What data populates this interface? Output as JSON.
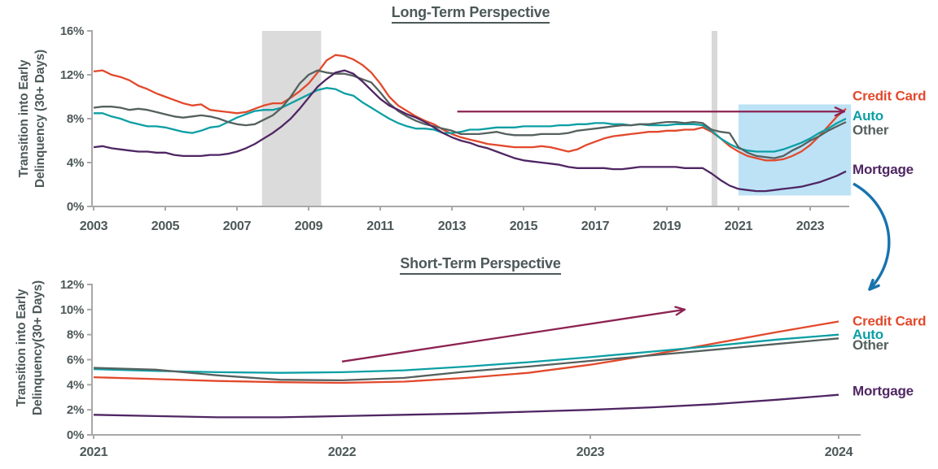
{
  "colors": {
    "credit_card": "#E2492C",
    "auto": "#0B9FA4",
    "other": "#55615F",
    "mortgage": "#4F2663",
    "trend_arrow": "#8C2351",
    "connector_arrow": "#1873AE",
    "highlight_box": "#BDE2F6",
    "recession_band": "#DBDBDB",
    "axis": "#A8A8A8",
    "text": "#4D5858"
  },
  "connector": {
    "type": "curved-arrow",
    "color": "#1873AE",
    "meaning": "zoom-in from long-term highlight box to short-term chart"
  },
  "chart_data": [
    {
      "type": "line",
      "title": "Long-Term Perspective",
      "ylabel_lines": [
        "Transition into Early",
        "Delinquency (30+ Days)"
      ],
      "xlabel": "",
      "xlim": [
        2003,
        2024.1
      ],
      "ylim": [
        0,
        16
      ],
      "grid": false,
      "legend_position": "right-edge-labels",
      "x_start": 2003,
      "x_step": 0.25,
      "axis_color": "#A8A8A8",
      "x_ticks": [
        {
          "v": 2003,
          "label": "2003"
        },
        {
          "v": 2005,
          "label": "2005"
        },
        {
          "v": 2007,
          "label": "2007"
        },
        {
          "v": 2009,
          "label": "2009"
        },
        {
          "v": 2011,
          "label": "2011"
        },
        {
          "v": 2013,
          "label": "2013"
        },
        {
          "v": 2015,
          "label": "2015"
        },
        {
          "v": 2017,
          "label": "2017"
        },
        {
          "v": 2019,
          "label": "2019"
        },
        {
          "v": 2021,
          "label": "2021"
        },
        {
          "v": 2023,
          "label": "2023"
        }
      ],
      "y_ticks": [
        {
          "v": 0,
          "label": "0%"
        },
        {
          "v": 4,
          "label": "4%"
        },
        {
          "v": 8,
          "label": "8%"
        },
        {
          "v": 12,
          "label": "12%"
        },
        {
          "v": 16,
          "label": "16%"
        }
      ],
      "bands": [
        {
          "name": "recession-band-2008",
          "x0": 2007.7,
          "x1": 2009.35,
          "color": "#DBDBDB"
        },
        {
          "name": "recession-band-2020",
          "x0": 2020.25,
          "x1": 2020.41,
          "color": "#D8D8D8"
        }
      ],
      "highlight_box": {
        "x0": 2021.0,
        "x1": 2024.14,
        "y0": 1.0,
        "y1": 9.3,
        "color": "#BDE2F6"
      },
      "arrow": {
        "x0": 2013.15,
        "y0": 8.65,
        "x1": 2023.95,
        "y1": 8.65,
        "color": "#8C2351"
      },
      "series": [
        {
          "name": "Credit Card",
          "color": "#E2492C",
          "values": [
            12.3,
            12.4,
            12.0,
            11.8,
            11.5,
            11.0,
            10.7,
            10.3,
            10.0,
            9.7,
            9.4,
            9.2,
            9.3,
            8.8,
            8.7,
            8.6,
            8.5,
            8.6,
            8.9,
            9.2,
            9.4,
            9.4,
            9.9,
            10.5,
            11.2,
            12.2,
            13.3,
            13.8,
            13.7,
            13.4,
            12.9,
            12.2,
            11.2,
            10.0,
            9.2,
            8.7,
            8.2,
            7.8,
            7.5,
            7.0,
            6.6,
            6.3,
            6.1,
            5.9,
            5.7,
            5.6,
            5.5,
            5.4,
            5.4,
            5.4,
            5.5,
            5.4,
            5.2,
            5.0,
            5.2,
            5.6,
            5.9,
            6.2,
            6.4,
            6.5,
            6.6,
            6.7,
            6.8,
            6.8,
            6.9,
            6.9,
            7.0,
            7.0,
            7.2,
            6.8,
            6.2,
            5.5,
            5.0,
            4.6,
            4.4,
            4.2,
            4.2,
            4.3,
            4.6,
            5.0,
            5.6,
            6.4,
            7.3,
            8.2,
            8.9
          ]
        },
        {
          "name": "Auto",
          "color": "#0B9FA4",
          "values": [
            8.5,
            8.5,
            8.2,
            8.0,
            7.7,
            7.5,
            7.3,
            7.3,
            7.2,
            7.0,
            6.8,
            6.7,
            6.9,
            7.2,
            7.3,
            7.7,
            8.1,
            8.4,
            8.7,
            8.8,
            8.8,
            9.0,
            9.4,
            9.8,
            10.2,
            10.6,
            10.8,
            10.7,
            10.3,
            10.1,
            9.5,
            9.0,
            8.5,
            8.0,
            7.6,
            7.3,
            7.1,
            7.1,
            7.0,
            6.7,
            6.7,
            6.8,
            7.0,
            7.0,
            7.1,
            7.2,
            7.2,
            7.2,
            7.3,
            7.3,
            7.3,
            7.3,
            7.4,
            7.4,
            7.5,
            7.5,
            7.6,
            7.6,
            7.5,
            7.5,
            7.4,
            7.5,
            7.4,
            7.4,
            7.4,
            7.5,
            7.5,
            7.5,
            7.4,
            6.9,
            6.2,
            5.7,
            5.3,
            5.1,
            5.0,
            5.0,
            5.0,
            5.2,
            5.5,
            5.8,
            6.2,
            6.7,
            7.1,
            7.6,
            8.0
          ]
        },
        {
          "name": "Other",
          "color": "#55615F",
          "values": [
            9.0,
            9.1,
            9.1,
            9.0,
            8.8,
            8.9,
            8.8,
            8.6,
            8.4,
            8.2,
            8.1,
            8.2,
            8.3,
            8.2,
            8.0,
            7.7,
            7.5,
            7.4,
            7.5,
            7.9,
            8.3,
            9.0,
            10.0,
            11.2,
            12.0,
            12.4,
            12.2,
            12.1,
            12.1,
            11.9,
            11.6,
            11.3,
            10.4,
            9.4,
            8.7,
            8.2,
            7.8,
            7.5,
            7.3,
            7.1,
            6.9,
            6.6,
            6.6,
            6.6,
            6.7,
            6.8,
            6.6,
            6.5,
            6.5,
            6.5,
            6.6,
            6.6,
            6.6,
            6.7,
            6.9,
            7.0,
            7.1,
            7.2,
            7.3,
            7.4,
            7.4,
            7.5,
            7.5,
            7.6,
            7.7,
            7.7,
            7.6,
            7.7,
            7.6,
            7.0,
            6.8,
            6.7,
            5.4,
            4.9,
            4.6,
            4.5,
            4.4,
            4.6,
            5.1,
            5.5,
            6.0,
            6.4,
            6.9,
            7.3,
            7.7
          ]
        },
        {
          "name": "Mortgage",
          "color": "#4F2663",
          "values": [
            5.4,
            5.5,
            5.3,
            5.2,
            5.1,
            5.0,
            5.0,
            4.9,
            4.9,
            4.7,
            4.6,
            4.6,
            4.6,
            4.7,
            4.7,
            4.8,
            5.0,
            5.3,
            5.7,
            6.2,
            6.7,
            7.3,
            8.0,
            8.9,
            9.9,
            10.9,
            11.6,
            12.2,
            12.4,
            12.1,
            11.4,
            10.6,
            9.8,
            9.2,
            8.8,
            8.4,
            8.1,
            7.7,
            7.2,
            6.7,
            6.3,
            6.0,
            5.8,
            5.5,
            5.3,
            5.0,
            4.7,
            4.4,
            4.2,
            4.1,
            4.0,
            3.9,
            3.8,
            3.6,
            3.5,
            3.5,
            3.5,
            3.5,
            3.4,
            3.4,
            3.5,
            3.6,
            3.6,
            3.6,
            3.6,
            3.6,
            3.5,
            3.5,
            3.5,
            3.0,
            2.4,
            1.9,
            1.6,
            1.5,
            1.4,
            1.4,
            1.5,
            1.6,
            1.7,
            1.8,
            2.0,
            2.2,
            2.5,
            2.8,
            3.2
          ]
        }
      ],
      "right_labels": [
        {
          "text": "Credit Card",
          "color": "#E2492C",
          "at_value": 10.1
        },
        {
          "text": "Auto",
          "color": "#0B9FA4",
          "at_value": 8.3
        },
        {
          "text": "Other",
          "color": "#55615F",
          "at_value": 7.0
        },
        {
          "text": "Mortgage",
          "color": "#4F2663",
          "at_value": 3.4
        }
      ]
    },
    {
      "type": "line",
      "title": "Short-Term Perspective",
      "ylabel_lines": [
        "Transition into Early",
        "Delinquency(30+ Days)"
      ],
      "xlabel": "",
      "xlim": [
        2021,
        2024.1
      ],
      "ylim": [
        0,
        12
      ],
      "grid": false,
      "legend_position": "right-edge-labels",
      "x_start": 2021,
      "x_step": 0.25,
      "axis_color": "#A8A8A8",
      "x_ticks": [
        {
          "v": 2021,
          "label": "2021"
        },
        {
          "v": 2022,
          "label": "2022"
        },
        {
          "v": 2023,
          "label": "2023"
        },
        {
          "v": 2024,
          "label": "2024"
        }
      ],
      "y_ticks": [
        {
          "v": 0,
          "label": "0%"
        },
        {
          "v": 2,
          "label": "2%"
        },
        {
          "v": 4,
          "label": "4%"
        },
        {
          "v": 6,
          "label": "6%"
        },
        {
          "v": 8,
          "label": "8%"
        },
        {
          "v": 10,
          "label": "10%"
        },
        {
          "v": 12,
          "label": "12%"
        }
      ],
      "bands": [],
      "highlight_box": null,
      "arrow": {
        "x0": 2022.0,
        "y0": 5.85,
        "x1": 2023.38,
        "y1": 10.0,
        "color": "#8C2351"
      },
      "series": [
        {
          "name": "Credit Card",
          "color": "#E2492C",
          "values": [
            4.6,
            4.45,
            4.3,
            4.2,
            4.15,
            4.25,
            4.55,
            4.95,
            5.6,
            6.4,
            7.3,
            8.2,
            9.05
          ]
        },
        {
          "name": "Auto",
          "color": "#0B9FA4",
          "values": [
            5.25,
            5.1,
            5.0,
            4.95,
            5.0,
            5.15,
            5.45,
            5.8,
            6.2,
            6.65,
            7.1,
            7.6,
            8.0
          ]
        },
        {
          "name": "Other",
          "color": "#55615F",
          "values": [
            5.35,
            5.2,
            4.75,
            4.4,
            4.35,
            4.55,
            5.05,
            5.45,
            5.9,
            6.35,
            6.8,
            7.25,
            7.7
          ]
        },
        {
          "name": "Mortgage",
          "color": "#4F2663",
          "values": [
            1.6,
            1.5,
            1.4,
            1.4,
            1.5,
            1.6,
            1.7,
            1.85,
            2.0,
            2.2,
            2.45,
            2.8,
            3.2
          ]
        }
      ],
      "right_labels": [
        {
          "text": "Credit Card",
          "color": "#E2492C",
          "at_value": 9.1
        },
        {
          "text": "Auto",
          "color": "#0B9FA4",
          "at_value": 8.05
        },
        {
          "text": "Other",
          "color": "#55615F",
          "at_value": 7.2
        },
        {
          "text": "Mortgage",
          "color": "#4F2663",
          "at_value": 3.55
        }
      ]
    }
  ]
}
